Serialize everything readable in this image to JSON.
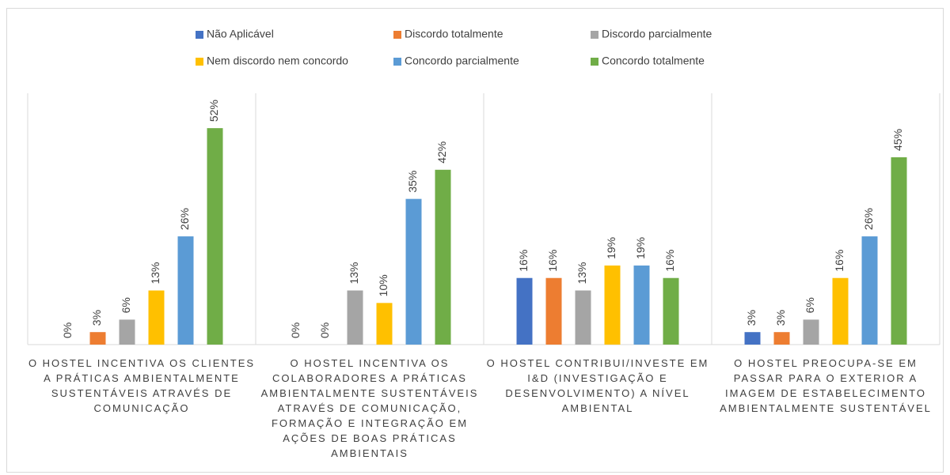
{
  "chart_data": {
    "type": "bar",
    "categories": [
      "O HOSTEL INCENTIVA OS CLIENTES A PRÁTICAS AMBIENTALMENTE SUSTENTÁVEIS ATRAVÉS DE COMUNICAÇÃO",
      "O HOSTEL INCENTIVA OS COLABORADORES A PRÁTICAS AMBIENTALMENTE SUSTENTÁVEIS ATRAVÉS DE COMUNICAÇÃO, FORMAÇÃO E INTEGRAÇÃO EM AÇÕES DE BOAS PRÁTICAS AMBIENTAIS",
      "O HOSTEL CONTRIBUI/INVESTE EM I&D (INVESTIGAÇÃO E DESENVOLVIMENTO) A NÍVEL AMBIENTAL",
      "O HOSTEL PREOCUPA-SE EM PASSAR PARA O EXTERIOR A IMAGEM DE ESTABELECIMENTO AMBIENTALMENTE SUSTENTÁVEL"
    ],
    "series": [
      {
        "name": "Não Aplicável",
        "color": "#4472c4",
        "values": [
          0,
          0,
          16,
          3
        ],
        "value_labels": [
          "0%",
          "0%",
          "16%",
          "3%"
        ]
      },
      {
        "name": "Discordo totalmente",
        "color": "#ed7d31",
        "values": [
          3,
          0,
          16,
          3
        ],
        "value_labels": [
          "3%",
          "0%",
          "16%",
          "3%"
        ]
      },
      {
        "name": "Discordo parcialmente",
        "color": "#a5a5a5",
        "values": [
          6,
          13,
          13,
          6
        ],
        "value_labels": [
          "6%",
          "13%",
          "13%",
          "6%"
        ]
      },
      {
        "name": "Nem discordo nem concordo",
        "color": "#ffc000",
        "values": [
          13,
          10,
          19,
          16
        ],
        "value_labels": [
          "13%",
          "10%",
          "19%",
          "16%"
        ]
      },
      {
        "name": "Concordo parcialmente",
        "color": "#5b9bd5",
        "values": [
          26,
          35,
          19,
          26
        ],
        "value_labels": [
          "26%",
          "35%",
          "19%",
          "26%"
        ]
      },
      {
        "name": "Concordo totalmente",
        "color": "#70ad47",
        "values": [
          52,
          42,
          16,
          45
        ],
        "value_labels": [
          "52%",
          "42%",
          "16%",
          "45%"
        ]
      }
    ],
    "ylim": [
      0,
      60
    ],
    "legend": "top"
  }
}
